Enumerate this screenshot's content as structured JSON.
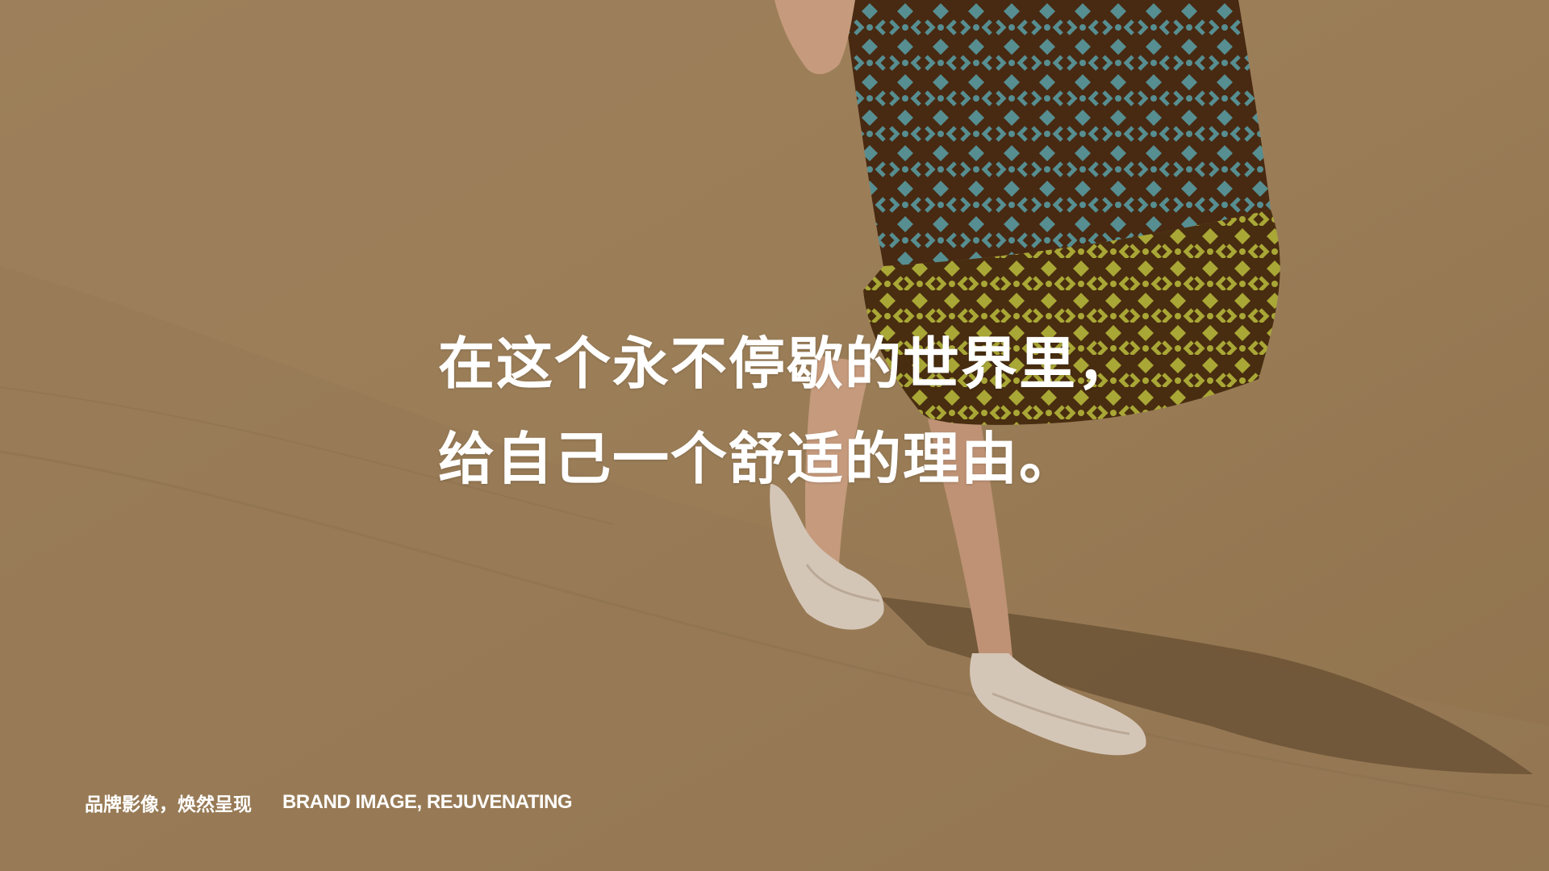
{
  "headline": {
    "line1": "在这个永不停歇的世界里，",
    "line2": "给自己一个舒适的理由。"
  },
  "footer": {
    "cn": "品牌影像，焕然呈现",
    "en": "BRAND IMAGE, REJUVENATING"
  },
  "colors": {
    "sand": "#a88a63",
    "sand_dark": "#8f7250",
    "skirt_blue": "#5a9aa0",
    "skirt_lime": "#b6b63a",
    "pattern_brown": "#4a2a12",
    "shoe": "#e6d8ca",
    "skin": "#d6a98a",
    "text": "#ffffff"
  }
}
